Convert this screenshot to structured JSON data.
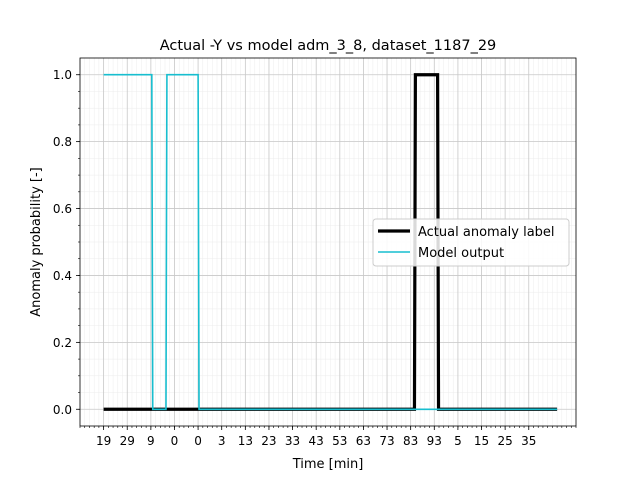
{
  "chart_data": {
    "type": "line",
    "title": "Actual -Y vs model adm_3_8, dataset_1187_29",
    "xlabel": "Time [min]",
    "ylabel": "Anomaly probability [-]",
    "xlim": [
      -2,
      103
    ],
    "ylim": [
      -0.05,
      1.05
    ],
    "grid": "on (major and minor)",
    "legend_position": "center-right",
    "x_ticks": [
      {
        "x": 3,
        "label": "19"
      },
      {
        "x": 8,
        "label": "29"
      },
      {
        "x": 13,
        "label": "9"
      },
      {
        "x": 18,
        "label": "0"
      },
      {
        "x": 23,
        "label": "0"
      },
      {
        "x": 28,
        "label": "3"
      },
      {
        "x": 33,
        "label": "13"
      },
      {
        "x": 38,
        "label": "23"
      },
      {
        "x": 43,
        "label": "33"
      },
      {
        "x": 48,
        "label": "43"
      },
      {
        "x": 53,
        "label": "53"
      },
      {
        "x": 58,
        "label": "63"
      },
      {
        "x": 63,
        "label": "73"
      },
      {
        "x": 68,
        "label": "83"
      },
      {
        "x": 73,
        "label": "93"
      },
      {
        "x": 78,
        "label": "5"
      },
      {
        "x": 83,
        "label": "15"
      },
      {
        "x": 88,
        "label": "25"
      },
      {
        "x": 93,
        "label": "35"
      }
    ],
    "y_ticks": [
      "0.0",
      "0.2",
      "0.4",
      "0.6",
      "0.8",
      "1.0"
    ],
    "series": [
      {
        "name": "Actual anomaly label",
        "color": "#000000",
        "x": [
          3,
          68.8,
          69,
          73.7,
          73.9,
          99
        ],
        "y": [
          0,
          0,
          1,
          1,
          0,
          0
        ]
      },
      {
        "name": "Model output",
        "color": "#17becf",
        "x": [
          3,
          13.2,
          13.4,
          16.2,
          16.4,
          23,
          23.2,
          68.8,
          69,
          73.7,
          73.9,
          99
        ],
        "y": [
          1,
          1,
          0,
          0,
          1,
          1,
          0,
          0,
          0,
          0,
          0,
          0
        ]
      }
    ]
  }
}
